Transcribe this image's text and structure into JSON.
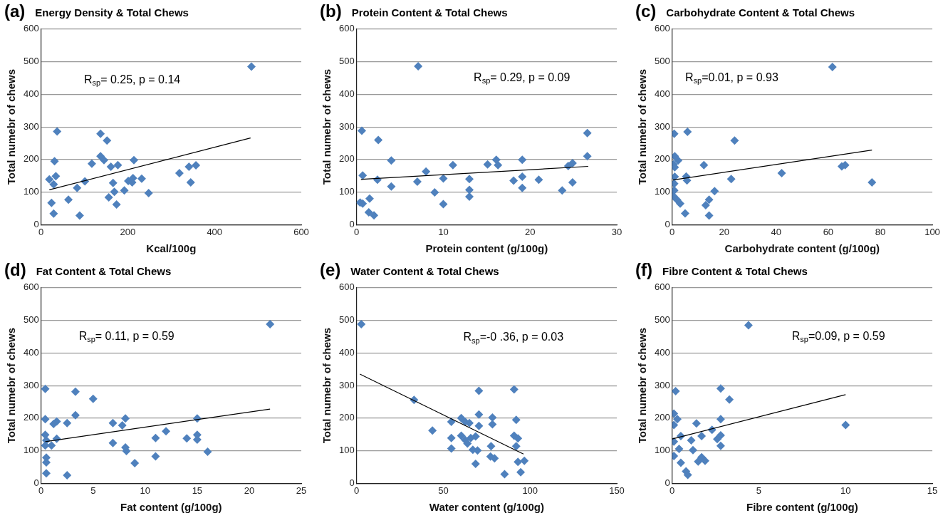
{
  "chart_data": [
    {
      "type": "scatter",
      "title": "Energy Density & Total Chews",
      "xlabel": "Kcal/100g",
      "ylabel": "Total numebr of chews",
      "xlim": [
        0,
        600
      ],
      "xticks": [
        0,
        200,
        400,
        600
      ],
      "ylim": [
        0,
        600
      ],
      "yticks": [
        0,
        100,
        200,
        300,
        400,
        500,
        600
      ],
      "grid": "y",
      "legend": false,
      "annotations": [
        "(a)",
        "R$_{sp}$= 0.25, p = 0.14"
      ],
      "series": [
        {
          "type": "scatter",
          "color": "#4f81bd",
          "marker": "diamond",
          "x": [
            485,
            37,
            137,
            152,
            31,
            137,
            145,
            117,
            161,
            177,
            214,
            19,
            34,
            29,
            83,
            101,
            166,
            156,
            169,
            174,
            192,
            201,
            212,
            210,
            232,
            248,
            319,
            341,
            357,
            345,
            24,
            63,
            29,
            89
          ],
          "values": [
            485,
            286,
            279,
            258,
            195,
            210,
            198,
            187,
            178,
            183,
            198,
            139,
            149,
            124,
            113,
            133,
            128,
            84,
            101,
            62,
            105,
            134,
            143,
            130,
            141,
            97,
            158,
            178,
            182,
            130,
            67,
            77,
            34,
            28
          ]
        },
        {
          "type": "line",
          "color": "#000000",
          "marker": "none",
          "x": [
            19,
            483
          ],
          "values": [
            107,
            266
          ]
        }
      ]
    },
    {
      "type": "scatter",
      "title": "Protein Content & Total Chews",
      "xlabel": "Protein content (g/100g)",
      "ylabel": "Total numebr of chews",
      "xlim": [
        0,
        30
      ],
      "xticks": [
        0,
        10,
        20,
        30
      ],
      "ylim": [
        0,
        600
      ],
      "yticks": [
        0,
        100,
        200,
        300,
        400,
        500,
        600
      ],
      "grid": "y",
      "legend": false,
      "annotations": [
        "(b)",
        "R$_{sp}$= 0.29, p = 0.09"
      ],
      "series": [
        {
          "type": "scatter",
          "color": "#4f81bd",
          "marker": "diamond",
          "x": [
            7.1,
            0.6,
            2.5,
            26.6,
            26.6,
            4.0,
            16.1,
            19.1,
            11.1,
            15.1,
            16.3,
            24.4,
            24.9,
            0.7,
            2.4,
            8.0,
            7.0,
            10.0,
            13.0,
            18.1,
            19.1,
            21.0,
            4.0,
            9.0,
            13.0,
            13.0,
            19.1,
            24.9,
            23.7,
            10.0,
            0.4,
            0.7,
            1.5,
            1.4,
            2.0
          ],
          "values": [
            486,
            288,
            260,
            281,
            210,
            197,
            199,
            199,
            183,
            185,
            183,
            180,
            189,
            151,
            138,
            163,
            132,
            142,
            140,
            135,
            147,
            138,
            117,
            99,
            107,
            86,
            113,
            130,
            105,
            63,
            68,
            65,
            80,
            38,
            29
          ]
        },
        {
          "type": "line",
          "color": "#000000",
          "marker": "none",
          "x": [
            0.5,
            26.7
          ],
          "values": [
            139,
            179
          ]
        }
      ]
    },
    {
      "type": "scatter",
      "title": "Carbohydrate Content & Total Chews",
      "xlabel": "Carbohydrate content (g/100g)",
      "ylabel": "Total numebr of chews",
      "xlim": [
        0,
        100
      ],
      "xticks": [
        0,
        20,
        40,
        60,
        80,
        100
      ],
      "ylim": [
        0,
        600
      ],
      "yticks": [
        0,
        100,
        200,
        300,
        400,
        500,
        600
      ],
      "grid": "y",
      "legend": false,
      "annotations": [
        "(c)",
        "R$_{sp}$=0.01, p = 0.93"
      ],
      "series": [
        {
          "type": "scatter",
          "color": "#4f81bd",
          "marker": "diamond",
          "x": [
            61.6,
            5.9,
            0.8,
            24.0,
            1.0,
            2.3,
            0.5,
            1.0,
            12.2,
            65.2,
            66.5,
            42.1,
            76.8,
            22.7,
            5.4,
            5.7,
            1.0,
            0.8,
            0.8,
            0.5,
            1.9,
            3.1,
            5.0,
            14.2,
            12.9,
            14.2,
            15.5,
            16.3
          ],
          "values": [
            484,
            285,
            279,
            258,
            210,
            197,
            185,
            176,
            183,
            179,
            183,
            158,
            130,
            140,
            148,
            136,
            147,
            126,
            105,
            88,
            76,
            65,
            35,
            28,
            60,
            77,
            null,
            103
          ]
        },
        {
          "type": "line",
          "color": "#000000",
          "marker": "none",
          "x": [
            0.3,
            76.8
          ],
          "values": [
            137,
            229
          ]
        }
      ]
    },
    {
      "type": "scatter",
      "title": "Fat Content & Total Chews",
      "xlabel": "Fat content (g/100g)",
      "ylabel": "Total numebr of chews",
      "xlim": [
        0,
        25
      ],
      "xticks": [
        0,
        5,
        10,
        15,
        20,
        25
      ],
      "ylim": [
        0,
        600
      ],
      "yticks": [
        0,
        100,
        200,
        300,
        400,
        500,
        600
      ],
      "grid": "y",
      "legend": false,
      "annotations": [
        "(d)",
        "R$_{sp}$= 0.11, p = 0.59"
      ],
      "series": [
        {
          "type": "scatter",
          "color": "#4f81bd",
          "marker": "diamond",
          "x": [
            22.0,
            0.4,
            3.3,
            5.0,
            3.3,
            0.4,
            1.5,
            1.2,
            2.5,
            6.9,
            8.1,
            7.8,
            15.0,
            12.0,
            0.4,
            0.5,
            1.5,
            1.0,
            0.4,
            6.9,
            11.0,
            14.0,
            15.0,
            15.0,
            8.1,
            8.2,
            16.0,
            11.0,
            9.0,
            0.5,
            0.5,
            0.5,
            2.5
          ],
          "values": [
            488,
            290,
            281,
            259,
            209,
            197,
            190,
            182,
            185,
            185,
            199,
            178,
            199,
            160,
            149,
            132,
            137,
            116,
            116,
            124,
            139,
            138,
            149,
            134,
            110,
            99,
            97,
            83,
            62,
            79,
            64,
            31,
            25
          ]
        },
        {
          "type": "line",
          "color": "#000000",
          "marker": "none",
          "x": [
            0.4,
            22.0
          ],
          "values": [
            128,
            228
          ]
        }
      ]
    },
    {
      "type": "scatter",
      "title": "Water Content & Total Chews",
      "xlabel": "Water content (g/100g)",
      "ylabel": "Total numebr of chews",
      "xlim": [
        0,
        150
      ],
      "xticks": [
        0,
        50,
        100,
        150
      ],
      "ylim": [
        0,
        600
      ],
      "yticks": [
        0,
        100,
        200,
        300,
        400,
        500,
        600
      ],
      "grid": "y",
      "legend": false,
      "annotations": [
        "(e)",
        "R$_{sp}$=-0 .36, p = 0.03"
      ],
      "series": [
        {
          "type": "scatter",
          "color": "#4f81bd",
          "marker": "diamond",
          "x": [
            2.7,
            33.1,
            43.7,
            54.6,
            54.6,
            54.6,
            60.3,
            62.6,
            65.0,
            60.3,
            62.6,
            65.8,
            68.6,
            63.9,
            67.0,
            69.7,
            68.6,
            70.5,
            70.5,
            70.5,
            78.3,
            78.3,
            77.5,
            77.2,
            79.5,
            85.3,
            90.8,
            92.0,
            90.8,
            93.0,
            92.0,
            93.0,
            96.7,
            94.6
          ],
          "values": [
            488,
            256,
            162,
            189,
            139,
            107,
            200,
            189,
            185,
            146,
            133,
            139,
            144,
            122,
            103,
            101,
            60,
            284,
            211,
            176,
            202,
            181,
            114,
            82,
            77,
            28,
            288,
            195,
            146,
            138,
            114,
            66,
            69,
            34
          ]
        },
        {
          "type": "line",
          "color": "#000000",
          "marker": "none",
          "x": [
            1.9,
            96.2
          ],
          "values": [
            335,
            90
          ]
        }
      ]
    },
    {
      "type": "scatter",
      "title": "Fibre Content & Total Chews",
      "xlabel": "Fibre content (g/100g)",
      "ylabel": "Total numebr of chews",
      "xlim": [
        0,
        15
      ],
      "xticks": [
        0,
        5,
        10,
        15
      ],
      "ylim": [
        0,
        600
      ],
      "yticks": [
        0,
        100,
        200,
        300,
        400,
        500,
        600
      ],
      "grid": "y",
      "legend": false,
      "annotations": [
        "(f)",
        "R$_{sp}$=0.09, p = 0.59"
      ],
      "series": [
        {
          "type": "scatter",
          "color": "#4f81bd",
          "marker": "diamond",
          "x": [
            4.4,
            0.2,
            2.8,
            3.3,
            10.0,
            2.8,
            1.4,
            2.3,
            0.1,
            0.3,
            0.1,
            0.5,
            1.7,
            2.8,
            2.6,
            2.8,
            1.1,
            0.1,
            0.4,
            0.1,
            1.2,
            0.5,
            1.5,
            1.7,
            1.9,
            0.8,
            0.9
          ],
          "values": [
            485,
            283,
            291,
            257,
            179,
            197,
            184,
            164,
            214,
            197,
            179,
            145,
            145,
            147,
            136,
            115,
            132,
            128,
            106,
            84,
            102,
            63,
            67,
            80,
            69,
            37,
            26
          ]
        },
        {
          "type": "line",
          "color": "#000000",
          "marker": "none",
          "x": [
            0,
            10.0
          ],
          "values": [
            136,
            272
          ]
        }
      ]
    }
  ]
}
